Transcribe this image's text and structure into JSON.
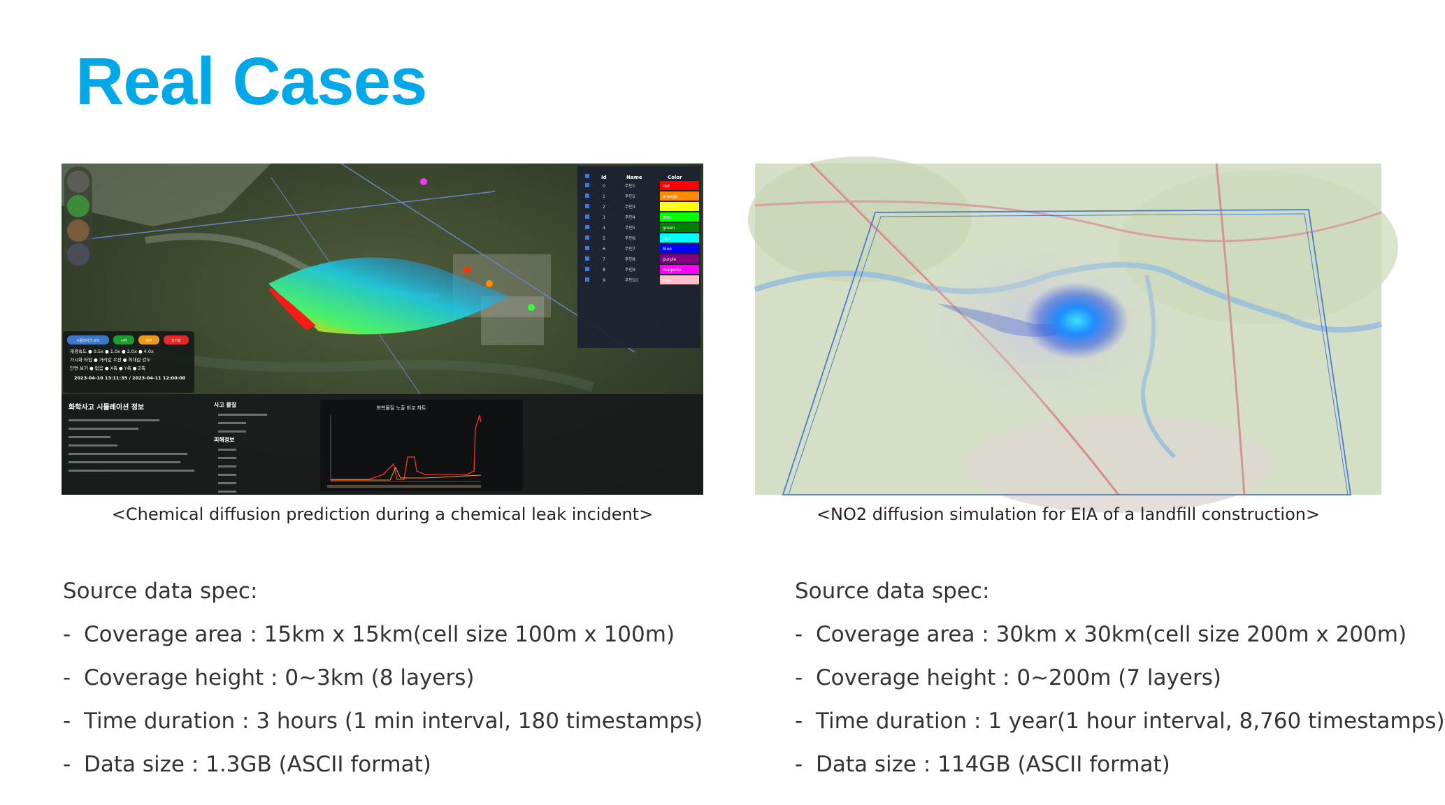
{
  "slide": {
    "title": "Real Cases"
  },
  "left_case": {
    "caption": "<Chemical diffusion prediction during a chemical leak incident>",
    "spec_heading": "Source data spec:",
    "spec_items": [
      "Coverage area : 15km x 15km(cell size 100m x 100m)",
      "Coverage height : 0~3km (8 layers)",
      "Time duration : 3 hours (1 min interval, 180 timestamps)",
      "Data size : 1.3GB (ASCII format)"
    ],
    "screenshot": {
      "legend_headers": [
        "Id",
        "Name",
        "Color"
      ],
      "legend_rows": [
        {
          "id": "0",
          "name": "주민1",
          "color_label": "red",
          "color": "#ff0000"
        },
        {
          "id": "1",
          "name": "주민2",
          "color_label": "orange",
          "color": "#ff8c00"
        },
        {
          "id": "2",
          "name": "주민3",
          "color_label": "yellow",
          "color": "#ffff00"
        },
        {
          "id": "3",
          "name": "주민4",
          "color_label": "lime",
          "color": "#00ff00"
        },
        {
          "id": "4",
          "name": "주민5",
          "color_label": "green",
          "color": "#008000"
        },
        {
          "id": "5",
          "name": "주민6",
          "color_label": "cyan",
          "color": "#00ffff"
        },
        {
          "id": "6",
          "name": "주민7",
          "color_label": "blue",
          "color": "#0000ff"
        },
        {
          "id": "7",
          "name": "주민8",
          "color_label": "purple",
          "color": "#800080"
        },
        {
          "id": "8",
          "name": "주민9",
          "color_label": "magenta",
          "color": "#ff00ff"
        },
        {
          "id": "9",
          "name": "주민10",
          "color_label": "pink",
          "color": "#ffc0cb"
        }
      ],
      "control_buttons": [
        "시뮬레이션 모드",
        "시작",
        "정지",
        "초기화"
      ],
      "speed_row": "재생속도 ● 0.5x ● 1.0x ● 2.0x ● 4.0x",
      "viz_row": "가시화 타입 ● 거리값 우선 ● 최대값 강도",
      "section_row": "단면 보기 ● 없음 ● X축 ● Y축 ● Z축",
      "time_range": "2023-04-10 13:11:35 / 2023-04-11 12:00:00",
      "info_title": "화학사고 시뮬레이션 정보",
      "material_title": "사고 물질",
      "damage_title": "피해정보",
      "chart_title": "화학물질 노출 비교 차트"
    }
  },
  "right_case": {
    "caption": "<NO2 diffusion simulation for EIA of a landfill construction>",
    "spec_heading": "Source data spec:",
    "spec_items": [
      "Coverage area : 30km x 30km(cell size 200m x 200m)",
      "Coverage height : 0~200m (7 layers)",
      "Time duration : 1 year(1 hour interval, 8,760 timestamps)",
      "Data size : 114GB (ASCII format)"
    ]
  }
}
